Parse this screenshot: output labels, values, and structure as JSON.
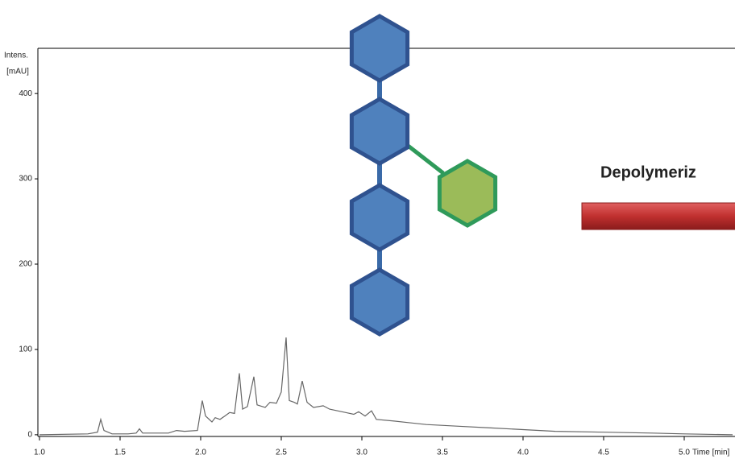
{
  "chart_data": {
    "type": "line",
    "ylabel_lines": [
      "Intens.",
      "[mAU]"
    ],
    "xlabel": "Time [min]",
    "annotation": "Depolymeriz",
    "xlim": [
      0.99,
      5.315
    ],
    "ylim": [
      -2,
      453
    ],
    "xticks": [
      {
        "value": 1,
        "label": "1.0"
      },
      {
        "value": 1.5,
        "label": "1.5"
      },
      {
        "value": 2,
        "label": "2.0"
      },
      {
        "value": 2.5,
        "label": "2.5"
      },
      {
        "value": 3,
        "label": "3.0"
      },
      {
        "value": 3.5,
        "label": "3.5"
      },
      {
        "value": 4,
        "label": "4.0"
      },
      {
        "value": 4.5,
        "label": "4.5"
      },
      {
        "value": 5,
        "label": "5.0"
      }
    ],
    "yticks": [
      0,
      100,
      200,
      300,
      400
    ],
    "series": [
      {
        "color": "#666666",
        "x": [
          1.0,
          1.3,
          1.36,
          1.38,
          1.4,
          1.45,
          1.55,
          1.6,
          1.62,
          1.64,
          1.8,
          1.85,
          1.9,
          1.98,
          2.01,
          2.03,
          2.07,
          2.09,
          2.12,
          2.15,
          2.18,
          2.21,
          2.24,
          2.26,
          2.29,
          2.33,
          2.35,
          2.4,
          2.43,
          2.47,
          2.5,
          2.53,
          2.55,
          2.58,
          2.6,
          2.63,
          2.66,
          2.7,
          2.76,
          2.8,
          2.85,
          2.9,
          2.95,
          2.98,
          3.02,
          3.06,
          3.09,
          3.2,
          3.4,
          3.6,
          3.8,
          4.0,
          4.2,
          4.5,
          4.8,
          5.0,
          5.3
        ],
        "values": [
          0,
          1,
          3,
          18,
          5,
          1,
          1,
          2,
          7,
          2,
          2,
          5,
          4,
          5,
          40,
          22,
          15,
          20,
          18,
          22,
          26,
          25,
          72,
          30,
          33,
          68,
          35,
          32,
          38,
          37,
          50,
          114,
          40,
          38,
          36,
          63,
          38,
          32,
          34,
          30,
          28,
          26,
          24,
          27,
          22,
          28,
          18,
          16,
          12,
          10,
          8,
          6,
          4,
          3,
          2,
          1,
          0
        ]
      }
    ]
  }
}
